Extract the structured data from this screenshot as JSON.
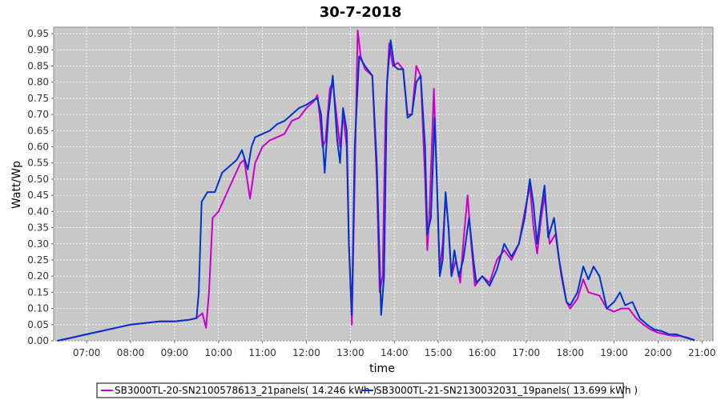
{
  "chart_data": {
    "type": "line",
    "title": "30-7-2018",
    "xlabel": "time",
    "ylabel": "Watt/Wp",
    "xlim": [
      "06:15",
      "21:15"
    ],
    "ylim": [
      0,
      0.97
    ],
    "x_ticks": [
      "07:00",
      "08:00",
      "09:00",
      "10:00",
      "11:00",
      "12:00",
      "13:00",
      "14:00",
      "15:00",
      "16:00",
      "17:00",
      "18:00",
      "19:00",
      "20:00",
      "21:00"
    ],
    "y_ticks": [
      "0.00",
      "0.05",
      "0.10",
      "0.15",
      "0.20",
      "0.25",
      "0.30",
      "0.35",
      "0.40",
      "0.45",
      "0.50",
      "0.55",
      "0.60",
      "0.65",
      "0.70",
      "0.75",
      "0.80",
      "0.85",
      "0.90",
      "0.95"
    ],
    "grid": true,
    "legend_position": "bottom",
    "series": [
      {
        "name": "SB3000TL-20-SN2100578613_21panels( 14.246 kWh )",
        "color": "#cc00cc",
        "points": [
          [
            "06:20",
            0.0
          ],
          [
            "06:40",
            0.01
          ],
          [
            "07:00",
            0.02
          ],
          [
            "07:20",
            0.03
          ],
          [
            "07:40",
            0.04
          ],
          [
            "08:00",
            0.05
          ],
          [
            "08:20",
            0.055
          ],
          [
            "08:40",
            0.06
          ],
          [
            "09:00",
            0.06
          ],
          [
            "09:20",
            0.065
          ],
          [
            "09:30",
            0.07
          ],
          [
            "09:38",
            0.085
          ],
          [
            "09:43",
            0.04
          ],
          [
            "09:47",
            0.15
          ],
          [
            "09:52",
            0.38
          ],
          [
            "10:00",
            0.4
          ],
          [
            "10:10",
            0.45
          ],
          [
            "10:20",
            0.5
          ],
          [
            "10:30",
            0.55
          ],
          [
            "10:35",
            0.56
          ],
          [
            "10:43",
            0.44
          ],
          [
            "10:50",
            0.55
          ],
          [
            "11:00",
            0.6
          ],
          [
            "11:10",
            0.62
          ],
          [
            "11:20",
            0.63
          ],
          [
            "11:30",
            0.64
          ],
          [
            "11:40",
            0.68
          ],
          [
            "11:50",
            0.69
          ],
          [
            "12:00",
            0.72
          ],
          [
            "12:10",
            0.74
          ],
          [
            "12:15",
            0.76
          ],
          [
            "12:18",
            0.7
          ],
          [
            "12:22",
            0.6
          ],
          [
            "12:26",
            0.62
          ],
          [
            "12:32",
            0.78
          ],
          [
            "12:36",
            0.8
          ],
          [
            "12:42",
            0.68
          ],
          [
            "12:46",
            0.6
          ],
          [
            "12:50",
            0.7
          ],
          [
            "12:55",
            0.6
          ],
          [
            "12:58",
            0.3
          ],
          [
            "13:02",
            0.05
          ],
          [
            "13:06",
            0.5
          ],
          [
            "13:10",
            0.96
          ],
          [
            "13:14",
            0.88
          ],
          [
            "13:20",
            0.84
          ],
          [
            "13:30",
            0.82
          ],
          [
            "13:36",
            0.5
          ],
          [
            "13:40",
            0.15
          ],
          [
            "13:44",
            0.2
          ],
          [
            "13:48",
            0.7
          ],
          [
            "13:53",
            0.92
          ],
          [
            "13:58",
            0.85
          ],
          [
            "14:05",
            0.86
          ],
          [
            "14:12",
            0.84
          ],
          [
            "14:18",
            0.7
          ],
          [
            "14:24",
            0.7
          ],
          [
            "14:30",
            0.85
          ],
          [
            "14:36",
            0.82
          ],
          [
            "14:42",
            0.5
          ],
          [
            "14:45",
            0.28
          ],
          [
            "14:48",
            0.4
          ],
          [
            "14:54",
            0.78
          ],
          [
            "14:58",
            0.5
          ],
          [
            "15:02",
            0.22
          ],
          [
            "15:06",
            0.3
          ],
          [
            "15:10",
            0.45
          ],
          [
            "15:14",
            0.35
          ],
          [
            "15:18",
            0.2
          ],
          [
            "15:24",
            0.25
          ],
          [
            "15:30",
            0.18
          ],
          [
            "15:34",
            0.3
          ],
          [
            "15:40",
            0.45
          ],
          [
            "15:45",
            0.3
          ],
          [
            "15:50",
            0.17
          ],
          [
            "16:00",
            0.2
          ],
          [
            "16:10",
            0.18
          ],
          [
            "16:20",
            0.25
          ],
          [
            "16:30",
            0.28
          ],
          [
            "16:40",
            0.25
          ],
          [
            "16:50",
            0.3
          ],
          [
            "16:58",
            0.4
          ],
          [
            "17:05",
            0.48
          ],
          [
            "17:10",
            0.35
          ],
          [
            "17:15",
            0.27
          ],
          [
            "17:20",
            0.37
          ],
          [
            "17:25",
            0.45
          ],
          [
            "17:32",
            0.3
          ],
          [
            "17:40",
            0.33
          ],
          [
            "17:48",
            0.2
          ],
          [
            "17:55",
            0.12
          ],
          [
            "18:00",
            0.1
          ],
          [
            "18:10",
            0.13
          ],
          [
            "18:18",
            0.19
          ],
          [
            "18:25",
            0.15
          ],
          [
            "18:40",
            0.14
          ],
          [
            "18:50",
            0.1
          ],
          [
            "19:00",
            0.09
          ],
          [
            "19:10",
            0.1
          ],
          [
            "19:20",
            0.1
          ],
          [
            "19:30",
            0.07
          ],
          [
            "19:40",
            0.05
          ],
          [
            "19:50",
            0.035
          ],
          [
            "20:00",
            0.025
          ],
          [
            "20:10",
            0.02
          ],
          [
            "20:20",
            0.015
          ],
          [
            "20:30",
            0.015
          ],
          [
            "20:40",
            0.01
          ],
          [
            "20:50",
            0.002
          ]
        ]
      },
      {
        "name": "SB3000TL-21-SN2130032031_19panels( 13.699 kWh )",
        "color": "#0033cc",
        "points": [
          [
            "06:20",
            0.0
          ],
          [
            "06:40",
            0.01
          ],
          [
            "07:00",
            0.02
          ],
          [
            "07:20",
            0.03
          ],
          [
            "07:40",
            0.04
          ],
          [
            "08:00",
            0.05
          ],
          [
            "08:20",
            0.055
          ],
          [
            "08:40",
            0.06
          ],
          [
            "09:00",
            0.06
          ],
          [
            "09:20",
            0.065
          ],
          [
            "09:30",
            0.07
          ],
          [
            "09:33",
            0.15
          ],
          [
            "09:37",
            0.43
          ],
          [
            "09:45",
            0.46
          ],
          [
            "09:55",
            0.46
          ],
          [
            "10:05",
            0.52
          ],
          [
            "10:15",
            0.54
          ],
          [
            "10:25",
            0.56
          ],
          [
            "10:32",
            0.59
          ],
          [
            "10:40",
            0.53
          ],
          [
            "10:45",
            0.6
          ],
          [
            "10:50",
            0.63
          ],
          [
            "11:00",
            0.64
          ],
          [
            "11:10",
            0.65
          ],
          [
            "11:20",
            0.67
          ],
          [
            "11:30",
            0.68
          ],
          [
            "11:40",
            0.7
          ],
          [
            "11:50",
            0.72
          ],
          [
            "12:00",
            0.73
          ],
          [
            "12:10",
            0.745
          ],
          [
            "12:15",
            0.75
          ],
          [
            "12:20",
            0.7
          ],
          [
            "12:25",
            0.52
          ],
          [
            "12:30",
            0.7
          ],
          [
            "12:36",
            0.82
          ],
          [
            "12:42",
            0.62
          ],
          [
            "12:46",
            0.55
          ],
          [
            "12:50",
            0.72
          ],
          [
            "12:55",
            0.65
          ],
          [
            "12:58",
            0.3
          ],
          [
            "13:02",
            0.08
          ],
          [
            "13:06",
            0.6
          ],
          [
            "13:12",
            0.88
          ],
          [
            "13:20",
            0.85
          ],
          [
            "13:30",
            0.82
          ],
          [
            "13:36",
            0.55
          ],
          [
            "13:42",
            0.08
          ],
          [
            "13:46",
            0.2
          ],
          [
            "13:50",
            0.8
          ],
          [
            "13:55",
            0.93
          ],
          [
            "14:00",
            0.85
          ],
          [
            "14:05",
            0.84
          ],
          [
            "14:12",
            0.84
          ],
          [
            "14:18",
            0.69
          ],
          [
            "14:24",
            0.7
          ],
          [
            "14:30",
            0.8
          ],
          [
            "14:36",
            0.82
          ],
          [
            "14:42",
            0.6
          ],
          [
            "14:45",
            0.33
          ],
          [
            "14:50",
            0.38
          ],
          [
            "14:55",
            0.69
          ],
          [
            "14:58",
            0.5
          ],
          [
            "15:02",
            0.2
          ],
          [
            "15:06",
            0.25
          ],
          [
            "15:10",
            0.46
          ],
          [
            "15:14",
            0.35
          ],
          [
            "15:18",
            0.2
          ],
          [
            "15:22",
            0.28
          ],
          [
            "15:28",
            0.2
          ],
          [
            "15:34",
            0.25
          ],
          [
            "15:42",
            0.38
          ],
          [
            "15:48",
            0.25
          ],
          [
            "15:52",
            0.18
          ],
          [
            "16:00",
            0.2
          ],
          [
            "16:10",
            0.17
          ],
          [
            "16:20",
            0.22
          ],
          [
            "16:30",
            0.3
          ],
          [
            "16:40",
            0.26
          ],
          [
            "16:50",
            0.3
          ],
          [
            "16:58",
            0.38
          ],
          [
            "17:05",
            0.5
          ],
          [
            "17:10",
            0.42
          ],
          [
            "17:15",
            0.3
          ],
          [
            "17:20",
            0.4
          ],
          [
            "17:25",
            0.48
          ],
          [
            "17:30",
            0.32
          ],
          [
            "17:38",
            0.38
          ],
          [
            "17:45",
            0.25
          ],
          [
            "17:55",
            0.12
          ],
          [
            "18:00",
            0.11
          ],
          [
            "18:10",
            0.15
          ],
          [
            "18:18",
            0.23
          ],
          [
            "18:25",
            0.19
          ],
          [
            "18:32",
            0.23
          ],
          [
            "18:40",
            0.2
          ],
          [
            "18:50",
            0.1
          ],
          [
            "19:00",
            0.12
          ],
          [
            "19:08",
            0.15
          ],
          [
            "19:15",
            0.11
          ],
          [
            "19:25",
            0.12
          ],
          [
            "19:35",
            0.07
          ],
          [
            "19:45",
            0.05
          ],
          [
            "19:55",
            0.035
          ],
          [
            "20:05",
            0.03
          ],
          [
            "20:15",
            0.02
          ],
          [
            "20:25",
            0.02
          ],
          [
            "20:35",
            0.012
          ],
          [
            "20:45",
            0.005
          ],
          [
            "20:50",
            0.002
          ]
        ]
      }
    ]
  }
}
